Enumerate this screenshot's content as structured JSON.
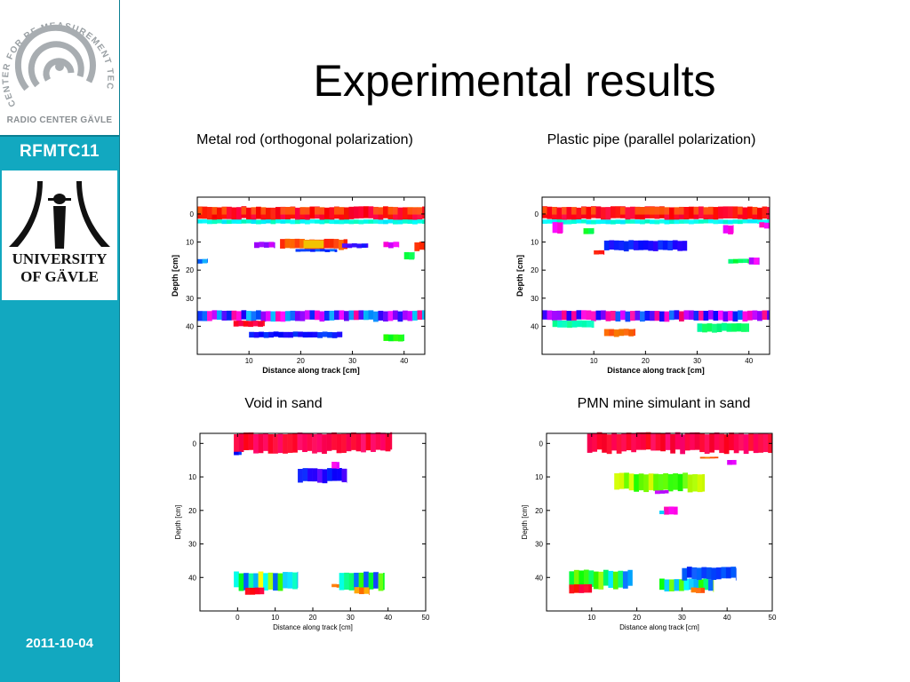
{
  "sidebar": {
    "logo_ring_text": "CENTER FOR RF MEASUREMENT TECHNOLOGY",
    "logo_caption": "RADIO CENTER GÄVLE",
    "conference": "RFMTC11",
    "university_lines": [
      "UNIVERSITY",
      "OF GÄVLE"
    ],
    "date": "2011-10-04"
  },
  "slide": {
    "title": "Experimental results"
  },
  "colors": {
    "sidebar": "#12a8c0",
    "text": "#000000"
  },
  "chart_data": [
    {
      "type": "heatmap",
      "title": "Metal rod (orthogonal polarization)",
      "xlabel": "Distance along track [cm]",
      "ylabel": "Depth [cm]",
      "xlim": [
        0,
        44
      ],
      "ylim": [
        -6,
        50
      ],
      "xticks": [
        10,
        20,
        30,
        40
      ],
      "yticks": [
        0,
        10,
        20,
        30,
        40
      ],
      "features": [
        {
          "kind": "band",
          "x": [
            0,
            44
          ],
          "y": [
            -2.5,
            2
          ],
          "hue": 355,
          "tint": "orange"
        },
        {
          "kind": "band",
          "x": [
            0,
            44
          ],
          "y": [
            2,
            3.5
          ],
          "hue": 175
        },
        {
          "kind": "segment",
          "x": [
            16,
            29
          ],
          "y": [
            9,
            12.5
          ],
          "hue": 15,
          "core": "#f2c200"
        },
        {
          "kind": "segment",
          "x": [
            19,
            27
          ],
          "y": [
            12.5,
            13.5
          ],
          "hue": 225
        },
        {
          "kind": "segment",
          "x": [
            11,
            15
          ],
          "y": [
            10,
            12
          ],
          "hue": 280
        },
        {
          "kind": "segment",
          "x": [
            28,
            33
          ],
          "y": [
            10.5,
            12
          ],
          "hue": 250
        },
        {
          "kind": "segment",
          "x": [
            36,
            39
          ],
          "y": [
            10,
            12
          ],
          "hue": 300
        },
        {
          "kind": "segment",
          "x": [
            42,
            44
          ],
          "y": [
            10,
            13
          ],
          "hue": 0
        },
        {
          "kind": "segment",
          "x": [
            40,
            42
          ],
          "y": [
            13.5,
            16
          ],
          "hue": 140
        },
        {
          "kind": "segment",
          "x": [
            0,
            2
          ],
          "y": [
            16,
            17.5
          ],
          "hue": 210
        },
        {
          "kind": "band",
          "x": [
            0,
            44
          ],
          "y": [
            34.5,
            38
          ],
          "hue": 260,
          "spread": 140
        },
        {
          "kind": "segment",
          "x": [
            7,
            13
          ],
          "y": [
            38,
            40
          ],
          "hue": 350
        },
        {
          "kind": "segment",
          "x": [
            10,
            28
          ],
          "y": [
            42,
            44
          ],
          "hue": 235
        },
        {
          "kind": "segment",
          "x": [
            36,
            40
          ],
          "y": [
            43,
            45.5
          ],
          "hue": 120
        }
      ]
    },
    {
      "type": "heatmap",
      "title": "Plastic pipe (parallel polarization)",
      "xlabel": "Distance along track [cm]",
      "ylabel": "Depth [cm]",
      "xlim": [
        0,
        44
      ],
      "ylim": [
        -6,
        50
      ],
      "xticks": [
        10,
        20,
        30,
        40
      ],
      "yticks": [
        0,
        10,
        20,
        30,
        40
      ],
      "features": [
        {
          "kind": "band",
          "x": [
            0,
            44
          ],
          "y": [
            -2.5,
            2
          ],
          "hue": 355,
          "tint": "orange"
        },
        {
          "kind": "band",
          "x": [
            0,
            44
          ],
          "y": [
            2,
            3.5
          ],
          "hue": 175
        },
        {
          "kind": "segment",
          "x": [
            2,
            4
          ],
          "y": [
            3,
            7
          ],
          "hue": 300
        },
        {
          "kind": "segment",
          "x": [
            8,
            10
          ],
          "y": [
            5,
            7
          ],
          "hue": 130
        },
        {
          "kind": "segment",
          "x": [
            35,
            37
          ],
          "y": [
            4,
            7
          ],
          "hue": 300
        },
        {
          "kind": "segment",
          "x": [
            42,
            44
          ],
          "y": [
            3,
            5
          ],
          "hue": 310
        },
        {
          "kind": "segment",
          "x": [
            12,
            28
          ],
          "y": [
            9.5,
            13
          ],
          "hue": 240
        },
        {
          "kind": "segment",
          "x": [
            10,
            12
          ],
          "y": [
            13,
            14.5
          ],
          "hue": 355
        },
        {
          "kind": "segment",
          "x": [
            36,
            40
          ],
          "y": [
            16,
            17.5
          ],
          "hue": 140
        },
        {
          "kind": "segment",
          "x": [
            40,
            42
          ],
          "y": [
            15.5,
            18
          ],
          "hue": 290
        },
        {
          "kind": "band",
          "x": [
            0,
            44
          ],
          "y": [
            34.5,
            38
          ],
          "hue": 275,
          "spread": 120
        },
        {
          "kind": "segment",
          "x": [
            2,
            10
          ],
          "y": [
            38,
            40.5
          ],
          "hue": 160
        },
        {
          "kind": "segment",
          "x": [
            12,
            18
          ],
          "y": [
            41,
            43.5
          ],
          "hue": 20
        },
        {
          "kind": "segment",
          "x": [
            30,
            40
          ],
          "y": [
            39,
            42
          ],
          "hue": 150
        }
      ]
    },
    {
      "type": "heatmap",
      "title": "Void in sand",
      "xlabel": "Distance along track [cm]",
      "ylabel": "Depth [cm]",
      "xlim": [
        -10,
        50
      ],
      "ylim": [
        -3,
        50
      ],
      "xticks": [
        0,
        10,
        20,
        30,
        40,
        50
      ],
      "yticks": [
        0,
        10,
        20,
        30,
        40
      ],
      "features": [
        {
          "kind": "band",
          "x": [
            -1,
            41
          ],
          "y": [
            -3,
            2.5
          ],
          "hue": 345
        },
        {
          "kind": "segment",
          "x": [
            -1,
            1
          ],
          "y": [
            2.5,
            3.5
          ],
          "hue": 230
        },
        {
          "kind": "segment",
          "x": [
            16,
            29
          ],
          "y": [
            7.5,
            11.5
          ],
          "hue": 240,
          "spread": 60
        },
        {
          "kind": "segment",
          "x": [
            25,
            27
          ],
          "y": [
            5.5,
            7.5
          ],
          "hue": 300
        },
        {
          "kind": "segment",
          "x": [
            -1,
            16
          ],
          "y": [
            38.5,
            43.5
          ],
          "hue": 150,
          "spread": 180
        },
        {
          "kind": "segment",
          "x": [
            2,
            7
          ],
          "y": [
            43,
            45
          ],
          "hue": 350
        },
        {
          "kind": "segment",
          "x": [
            25,
            27
          ],
          "y": [
            42,
            43
          ],
          "hue": 30
        },
        {
          "kind": "segment",
          "x": [
            27,
            39
          ],
          "y": [
            38.5,
            43.5
          ],
          "hue": 160,
          "spread": 160
        },
        {
          "kind": "segment",
          "x": [
            31,
            35
          ],
          "y": [
            43,
            45
          ],
          "hue": 30
        }
      ]
    },
    {
      "type": "heatmap",
      "title": "PMN mine simulant in sand",
      "xlabel": "Distance along track [cm]",
      "ylabel": "Depth [cm]",
      "xlim": [
        0,
        50
      ],
      "ylim": [
        -3,
        50
      ],
      "xticks": [
        10,
        20,
        30,
        40,
        50
      ],
      "yticks": [
        0,
        10,
        20,
        30,
        40
      ],
      "features": [
        {
          "kind": "band",
          "x": [
            9,
            51
          ],
          "y": [
            -3,
            2.5
          ],
          "hue": 345
        },
        {
          "kind": "segment",
          "x": [
            34,
            38
          ],
          "y": [
            4,
            4.5
          ],
          "hue": 20
        },
        {
          "kind": "segment",
          "x": [
            40,
            42
          ],
          "y": [
            5,
            6.5
          ],
          "hue": 300
        },
        {
          "kind": "segment",
          "x": [
            15,
            35
          ],
          "y": [
            9,
            14
          ],
          "hue": 90,
          "spread": 50
        },
        {
          "kind": "segment",
          "x": [
            24,
            27
          ],
          "y": [
            14,
            15
          ],
          "hue": 280
        },
        {
          "kind": "segment",
          "x": [
            26,
            29
          ],
          "y": [
            19,
            21.5
          ],
          "hue": 310
        },
        {
          "kind": "segment",
          "x": [
            25,
            26
          ],
          "y": [
            20,
            21
          ],
          "hue": 190
        },
        {
          "kind": "segment",
          "x": [
            5,
            19
          ],
          "y": [
            38,
            43
          ],
          "hue": 160,
          "spread": 180
        },
        {
          "kind": "segment",
          "x": [
            5,
            10
          ],
          "y": [
            42,
            44.5
          ],
          "hue": 355
        },
        {
          "kind": "segment",
          "x": [
            25,
            37
          ],
          "y": [
            40.5,
            44
          ],
          "hue": 150,
          "spread": 150
        },
        {
          "kind": "segment",
          "x": [
            30,
            42
          ],
          "y": [
            37,
            40.5
          ],
          "hue": 225
        },
        {
          "kind": "segment",
          "x": [
            32,
            35
          ],
          "y": [
            43,
            44.5
          ],
          "hue": 25
        }
      ]
    }
  ]
}
